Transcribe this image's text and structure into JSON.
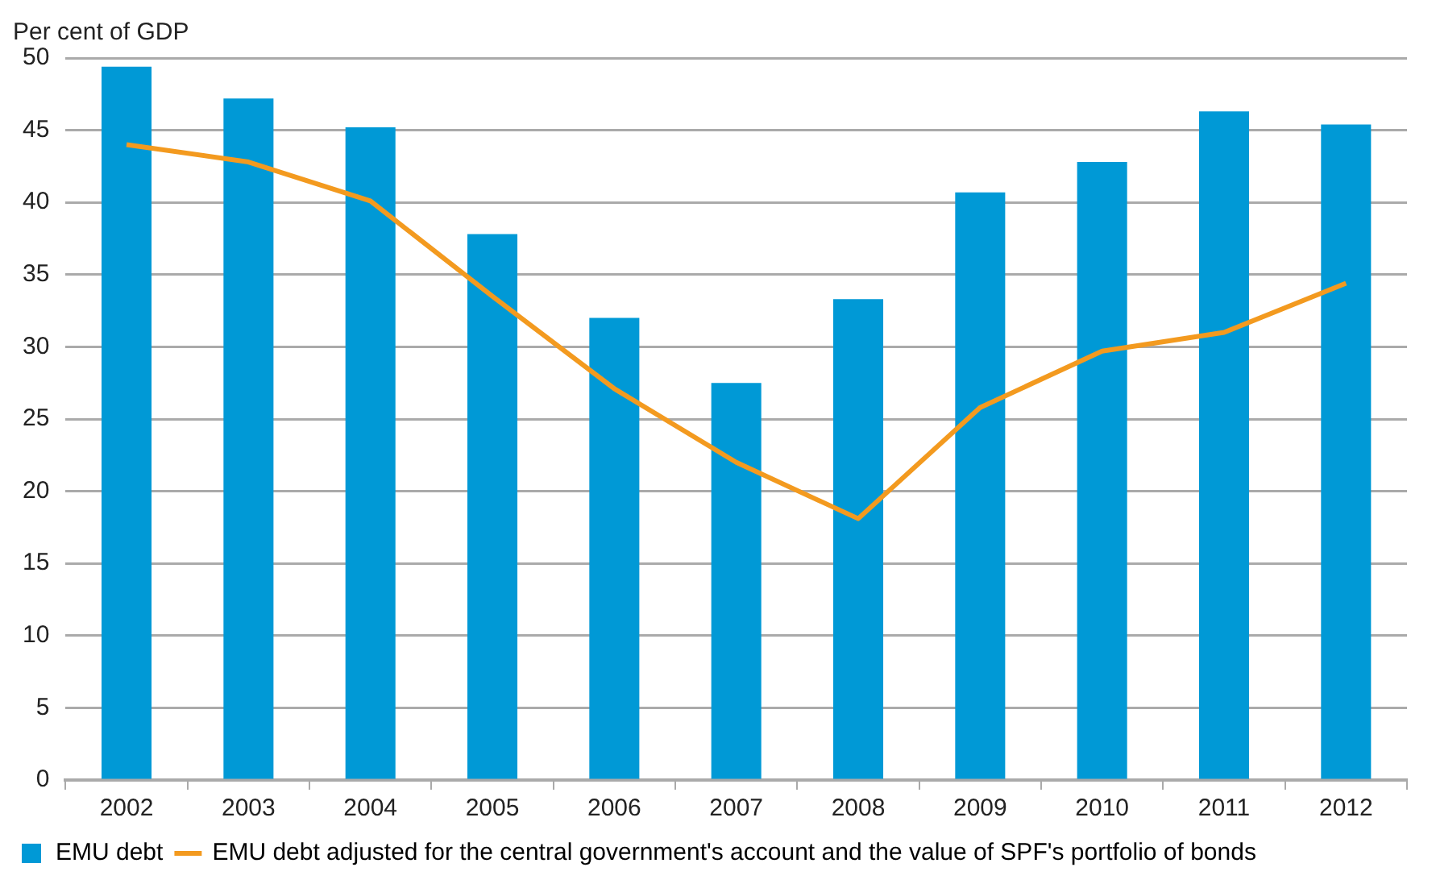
{
  "chart_data": {
    "type": "bar",
    "ylabel": "Per cent of GDP",
    "categories": [
      "2002",
      "2003",
      "2004",
      "2005",
      "2006",
      "2007",
      "2008",
      "2009",
      "2010",
      "2011",
      "2012"
    ],
    "series": [
      {
        "name": "EMU debt",
        "color": "#0099d6",
        "values": [
          49.4,
          47.2,
          45.2,
          37.8,
          32.0,
          27.5,
          33.3,
          40.7,
          42.8,
          46.3,
          45.4
        ]
      },
      {
        "name": "EMU debt adjusted for the central government's account and the value of SPF's portfolio of bonds",
        "type": "line",
        "color": "#f39a1f",
        "values": [
          44.0,
          42.8,
          40.1,
          33.5,
          27.1,
          22.0,
          18.1,
          25.8,
          29.7,
          31.0,
          34.4
        ]
      }
    ],
    "ylim": [
      0,
      50
    ],
    "yticks": [
      0,
      5,
      10,
      15,
      20,
      25,
      30,
      35,
      40,
      45,
      50
    ],
    "grid": "y",
    "legend": "bottom",
    "marker": "none"
  }
}
